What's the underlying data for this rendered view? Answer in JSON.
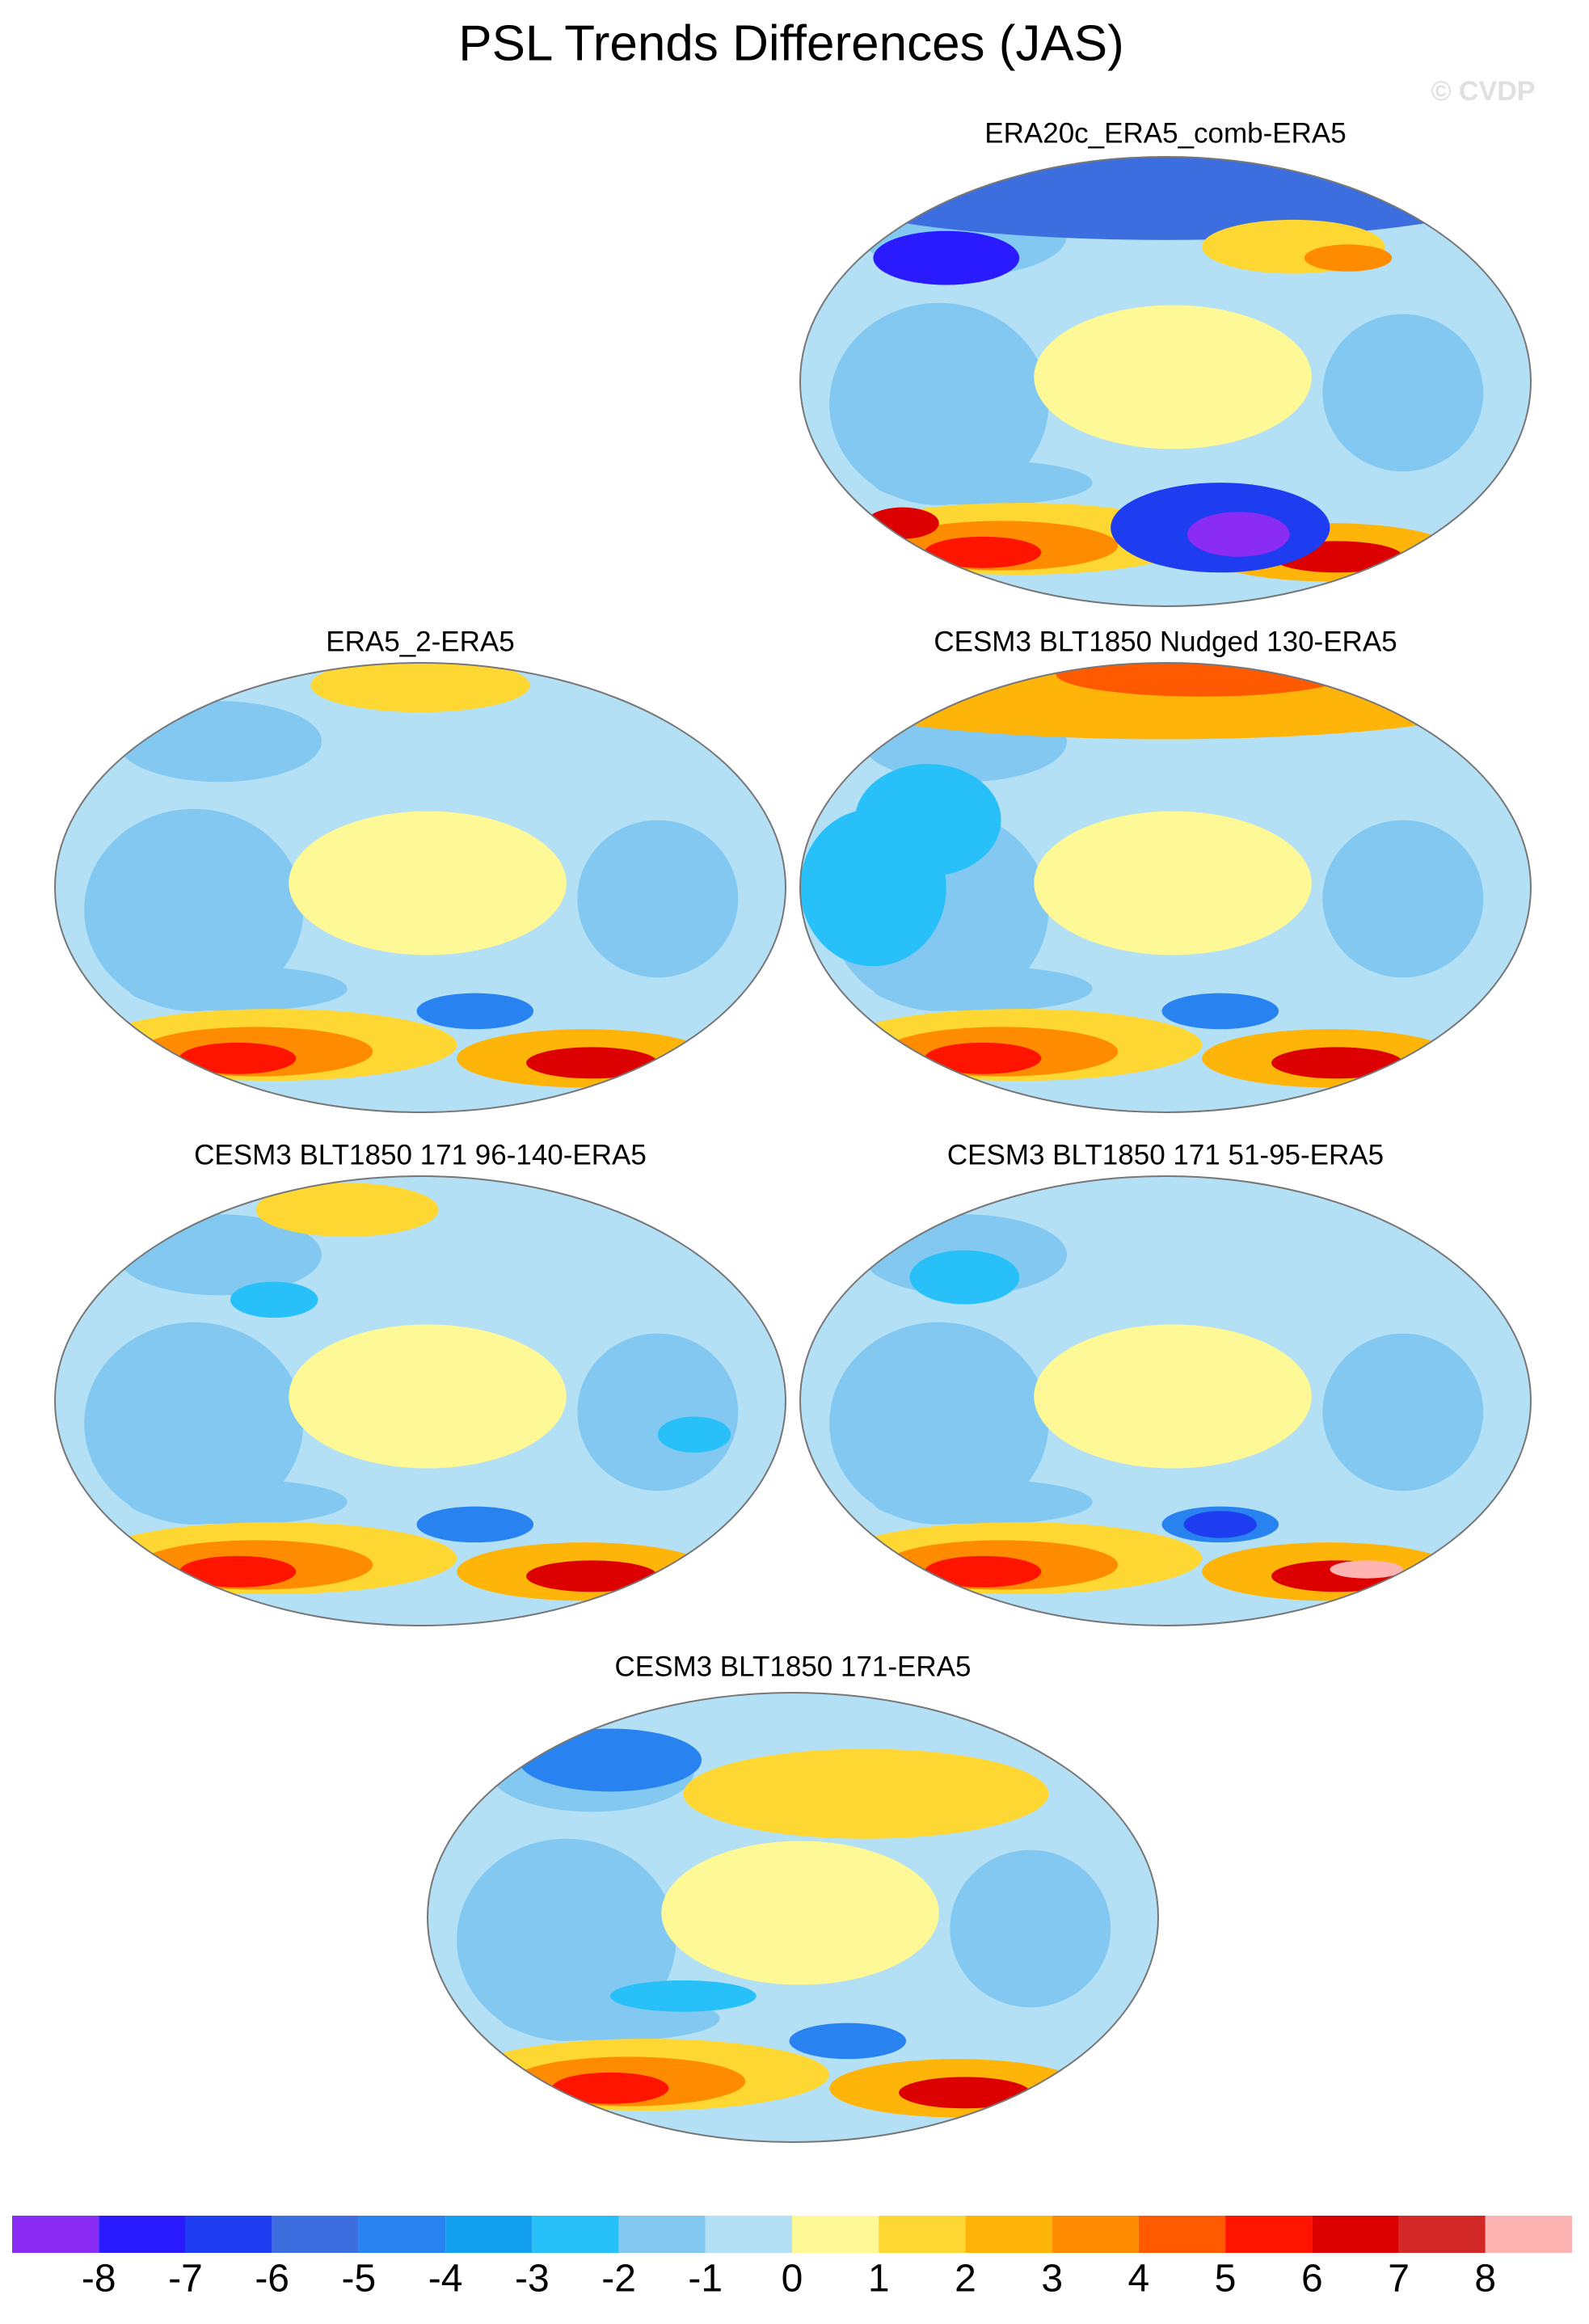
{
  "title": "PSL Trends Differences (JAS)",
  "watermark": "© CVDP",
  "panels": [
    {
      "title": "ERA20c_ERA5_comb-ERA5"
    },
    {
      "title": "ERA5_2-ERA5"
    },
    {
      "title": "CESM3 BLT1850 Nudged 130-ERA5"
    },
    {
      "title": "CESM3 BLT1850 171 96-140-ERA5"
    },
    {
      "title": "CESM3 BLT1850 171 51-95-ERA5"
    },
    {
      "title": "CESM3 BLT1850 171-ERA5"
    }
  ],
  "colorbar": {
    "levels": [
      -8,
      -7,
      -6,
      -5,
      -4,
      -3,
      -2,
      -1,
      0,
      1,
      2,
      3,
      4,
      5,
      6,
      7,
      8
    ],
    "colors": [
      "#8b2cf5",
      "#2a1aff",
      "#1e3cf0",
      "#3c6ee0",
      "#2882f0",
      "#14a0f0",
      "#28c0f8",
      "#82c8f0",
      "#b4e0f5",
      "#fff896",
      "#ffd732",
      "#ffb40a",
      "#ff8c00",
      "#ff5a00",
      "#ff1400",
      "#dc0000",
      "#d22828",
      "#ffb4b4"
    ]
  }
}
